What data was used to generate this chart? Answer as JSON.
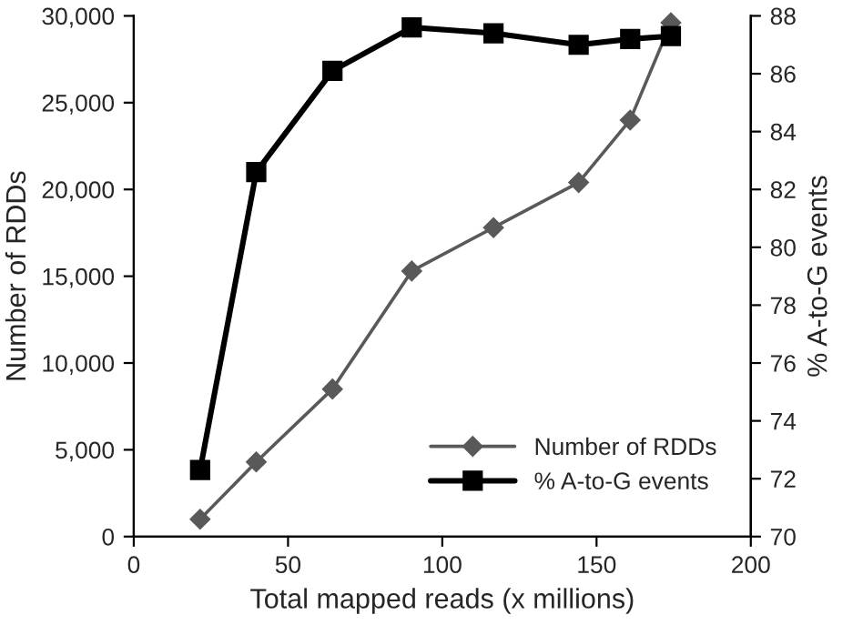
{
  "chart_data": {
    "type": "line",
    "xlabel": "Total mapped reads (x millions)",
    "ylabel": "Number of RDDs",
    "y2label": "% A-to-G events",
    "x": [
      21.5,
      39.7,
      64.4,
      90.1,
      116.6,
      144.2,
      160.9,
      174.1
    ],
    "series": [
      {
        "name": "Number of RDDs",
        "color": "#595959",
        "marker": "diamond",
        "values": [
          1000,
          4300,
          8500,
          15300,
          17800,
          20400,
          24000,
          29600
        ]
      },
      {
        "name": "% A-to-G events",
        "color": "#000000",
        "marker": "square",
        "axis": "y2",
        "values": [
          72.3,
          82.6,
          86.1,
          87.6,
          87.4,
          87.0,
          87.2,
          87.3
        ]
      }
    ],
    "xlim": [
      0,
      200
    ],
    "xticks": [
      0,
      50,
      100,
      150,
      200
    ],
    "ylim": [
      0,
      30000
    ],
    "yticks": [
      {
        "value": 0,
        "label": "0"
      },
      {
        "value": 5000,
        "label": "5,000"
      },
      {
        "value": 10000,
        "label": "10,000"
      },
      {
        "value": 15000,
        "label": "15,000"
      },
      {
        "value": 20000,
        "label": "20,000"
      },
      {
        "value": 25000,
        "label": "25,000"
      },
      {
        "value": 30000,
        "label": "30,000"
      }
    ],
    "y2lim": [
      70,
      88
    ],
    "y2ticks": [
      70,
      72,
      74,
      76,
      78,
      80,
      82,
      84,
      86,
      88
    ],
    "legend": "bottom right",
    "grid": false,
    "line_style": "solid"
  }
}
